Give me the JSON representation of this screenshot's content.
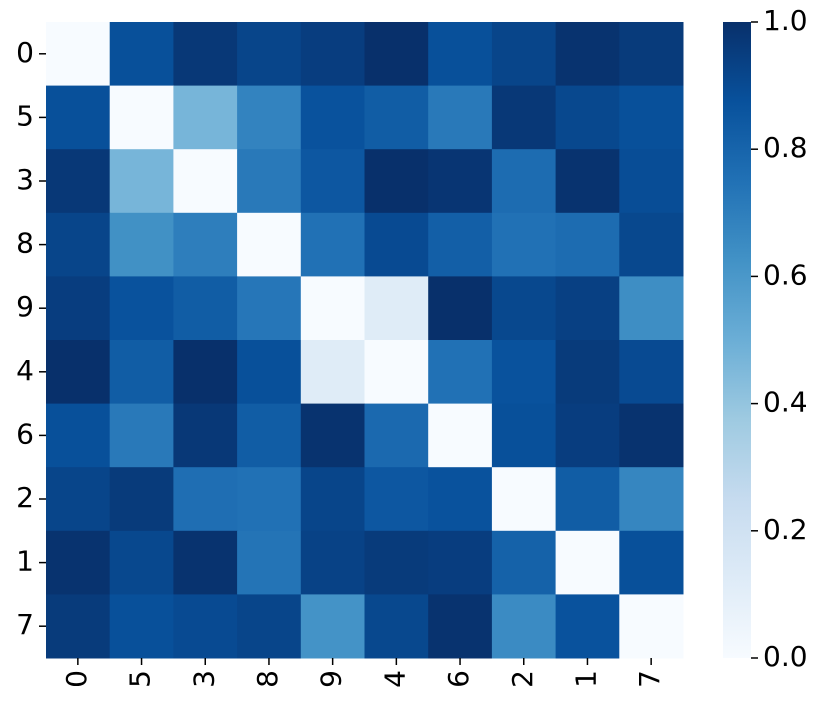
{
  "chart_data": {
    "type": "heatmap",
    "colormap": "Blues",
    "x_categories": [
      "0",
      "5",
      "3",
      "8",
      "9",
      "4",
      "6",
      "2",
      "1",
      "7"
    ],
    "y_categories": [
      "0",
      "5",
      "3",
      "8",
      "9",
      "4",
      "6",
      "2",
      "1",
      "7"
    ],
    "values": [
      [
        0,
        0.88,
        0.97,
        0.92,
        0.95,
        1.0,
        0.88,
        0.92,
        0.99,
        0.96
      ],
      [
        0.88,
        0,
        0.47,
        0.68,
        0.87,
        0.83,
        0.72,
        0.97,
        0.91,
        0.88
      ],
      [
        0.97,
        0.47,
        0,
        0.72,
        0.85,
        1.0,
        0.98,
        0.77,
        0.99,
        0.89
      ],
      [
        0.92,
        0.63,
        0.7,
        0,
        0.75,
        0.9,
        0.82,
        0.75,
        0.77,
        0.91
      ],
      [
        0.95,
        0.87,
        0.83,
        0.73,
        0,
        0.12,
        1.0,
        0.91,
        0.94,
        0.64
      ],
      [
        1.0,
        0.83,
        1.0,
        0.88,
        0.12,
        0,
        0.75,
        0.87,
        0.96,
        0.9
      ],
      [
        0.88,
        0.72,
        0.97,
        0.83,
        0.99,
        0.78,
        0,
        0.88,
        0.95,
        0.99
      ],
      [
        0.92,
        0.96,
        0.76,
        0.75,
        0.92,
        0.85,
        0.87,
        0,
        0.83,
        0.67
      ],
      [
        0.99,
        0.91,
        0.99,
        0.74,
        0.93,
        0.96,
        0.95,
        0.81,
        0,
        0.88
      ],
      [
        0.96,
        0.88,
        0.9,
        0.92,
        0.62,
        0.91,
        0.99,
        0.65,
        0.87,
        0
      ]
    ],
    "clim": [
      0,
      1
    ],
    "cticks": [
      {
        "value": 0,
        "label": "0.0"
      },
      {
        "value": 0.2,
        "label": "0.2"
      },
      {
        "value": 0.4,
        "label": "0.4"
      },
      {
        "value": 0.6,
        "label": "0.6"
      },
      {
        "value": 0.8,
        "label": "0.8"
      },
      {
        "value": 1,
        "label": "1.0"
      }
    ]
  }
}
